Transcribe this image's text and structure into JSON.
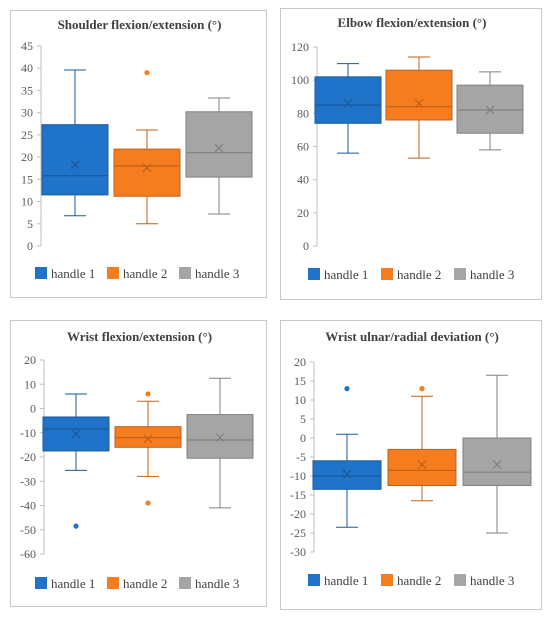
{
  "colors": {
    "handle1": "#1f73c8",
    "handle2": "#f57c1f",
    "handle3": "#a5a5a5"
  },
  "chart_data": [
    {
      "type": "box",
      "title": "Shoulder flexion/extension (°)",
      "ylim": [
        0,
        45
      ],
      "yticks": [
        0,
        5,
        10,
        15,
        20,
        25,
        30,
        35,
        40,
        45
      ],
      "grid": false,
      "legend": "bottom",
      "series": [
        {
          "name": "handle 1",
          "min": 6.8,
          "q1": 11.5,
          "median": 15.8,
          "mean": 18.3,
          "q3": 27.3,
          "max": 39.6,
          "outliers": []
        },
        {
          "name": "handle 2",
          "min": 5.0,
          "q1": 11.2,
          "median": 18.0,
          "mean": 17.6,
          "q3": 21.8,
          "max": 26.1,
          "outliers": [
            39.0
          ]
        },
        {
          "name": "handle 3",
          "min": 7.2,
          "q1": 15.5,
          "median": 21.0,
          "mean": 22.0,
          "q3": 30.2,
          "max": 33.3,
          "outliers": []
        }
      ]
    },
    {
      "type": "box",
      "title": "Elbow flexion/extension (°)",
      "ylim": [
        0,
        120
      ],
      "yticks": [
        0,
        20,
        40,
        60,
        80,
        100,
        120
      ],
      "grid": false,
      "legend": "bottom",
      "series": [
        {
          "name": "handle 1",
          "min": 56,
          "q1": 74,
          "median": 85,
          "mean": 86,
          "q3": 102,
          "max": 110,
          "outliers": []
        },
        {
          "name": "handle 2",
          "min": 53,
          "q1": 76,
          "median": 84,
          "mean": 86,
          "q3": 106,
          "max": 114,
          "outliers": []
        },
        {
          "name": "handle 3",
          "min": 58,
          "q1": 68,
          "median": 82,
          "mean": 82,
          "q3": 97,
          "max": 105,
          "outliers": []
        }
      ]
    },
    {
      "type": "box",
      "title": "Wrist flexion/extension (°)",
      "ylim": [
        -60,
        20
      ],
      "yticks": [
        -60,
        -50,
        -40,
        -30,
        -20,
        -10,
        0,
        10,
        20
      ],
      "grid": false,
      "legend": "bottom",
      "series": [
        {
          "name": "handle 1",
          "min": -25.5,
          "q1": -17.5,
          "median": -8.5,
          "mean": -10.5,
          "q3": -3.5,
          "max": 6.0,
          "outliers": [
            -48.5
          ]
        },
        {
          "name": "handle 2",
          "min": -28.0,
          "q1": -16.0,
          "median": -12.0,
          "mean": -12.5,
          "q3": -7.5,
          "max": 3.0,
          "outliers": [
            6.0,
            -39.0
          ]
        },
        {
          "name": "handle 3",
          "min": -41.0,
          "q1": -20.5,
          "median": -13.0,
          "mean": -12.0,
          "q3": -2.5,
          "max": 12.5,
          "outliers": []
        }
      ]
    },
    {
      "type": "box",
      "title": "Wrist ulnar/radial deviation (°)",
      "ylim": [
        -30,
        20
      ],
      "yticks": [
        -30,
        -25,
        -20,
        -15,
        -10,
        -5,
        0,
        5,
        10,
        15,
        20
      ],
      "grid": false,
      "legend": "bottom",
      "series": [
        {
          "name": "handle 1",
          "min": -23.5,
          "q1": -13.5,
          "median": -10.0,
          "mean": -9.5,
          "q3": -6.0,
          "max": 1.0,
          "outliers": [
            13.0
          ]
        },
        {
          "name": "handle 2",
          "min": -16.5,
          "q1": -12.5,
          "median": -8.5,
          "mean": -7.0,
          "q3": -3.0,
          "max": 11.0,
          "outliers": [
            13.0
          ]
        },
        {
          "name": "handle 3",
          "min": -25.0,
          "q1": -12.5,
          "median": -9.0,
          "mean": -7.0,
          "q3": 0.0,
          "max": 16.5,
          "outliers": []
        }
      ]
    }
  ]
}
